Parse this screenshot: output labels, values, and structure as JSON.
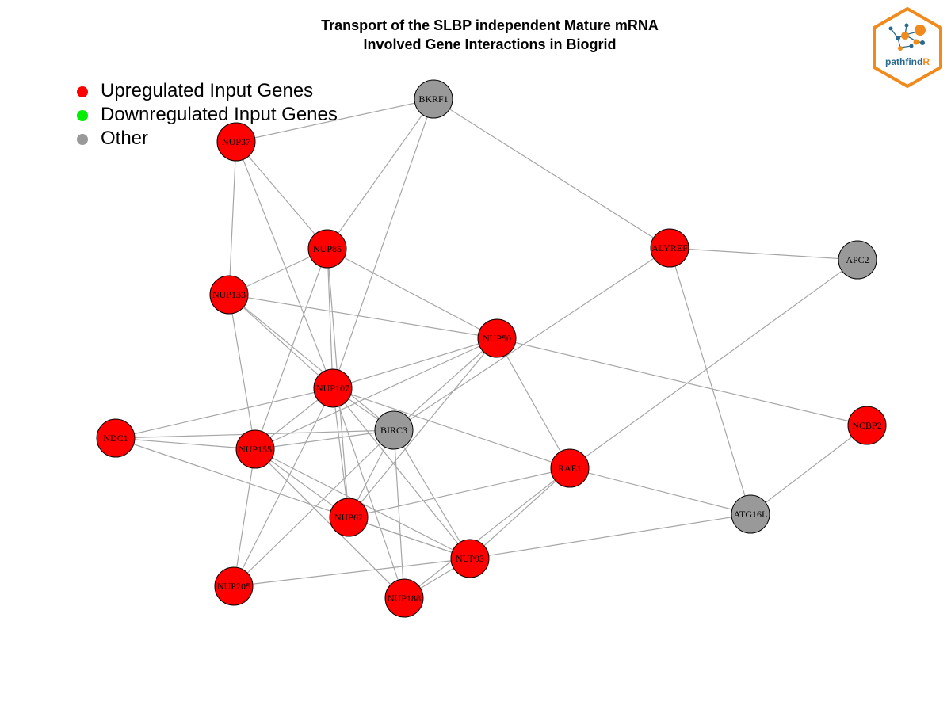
{
  "title_lines": [
    "Transport of the SLBP independent Mature mRNA",
    "Involved Gene Interactions in Biogrid"
  ],
  "legend": [
    {
      "label": "Upregulated Input Genes",
      "color": "#ff0000"
    },
    {
      "label": "Downregulated Input Genes",
      "color": "#00ee00"
    },
    {
      "label": "Other",
      "color": "#999999"
    }
  ],
  "colors": {
    "upregulated": "#ff0000",
    "other": "#999999",
    "edge": "#a6a6a6",
    "node_border": "#000000"
  },
  "logo": {
    "text_main": "pathfind",
    "text_accent": "R",
    "border_color": "#f08a1c",
    "icon": "network-logo-icon"
  },
  "network": {
    "nodes": [
      {
        "id": "BKRF1",
        "label": "BKRF1",
        "type": "other"
      },
      {
        "id": "NUP37",
        "label": "NUP37",
        "type": "upregulated"
      },
      {
        "id": "NUP85",
        "label": "NUP85",
        "type": "upregulated"
      },
      {
        "id": "ALYREF",
        "label": "ALYREF",
        "type": "upregulated"
      },
      {
        "id": "APC2",
        "label": "APC2",
        "type": "other"
      },
      {
        "id": "NUP133",
        "label": "NUP133",
        "type": "upregulated"
      },
      {
        "id": "NUP50",
        "label": "NUP50",
        "type": "upregulated"
      },
      {
        "id": "NUP107",
        "label": "NUP107",
        "type": "upregulated"
      },
      {
        "id": "BIRC3",
        "label": "BIRC3",
        "type": "other"
      },
      {
        "id": "NCBP2",
        "label": "NCBP2",
        "type": "upregulated"
      },
      {
        "id": "NDC1",
        "label": "NDC1",
        "type": "upregulated"
      },
      {
        "id": "NUP155",
        "label": "NUP155",
        "type": "upregulated"
      },
      {
        "id": "RAE1",
        "label": "RAE1",
        "type": "upregulated"
      },
      {
        "id": "ATG16L",
        "label": "ATG16L",
        "type": "other"
      },
      {
        "id": "NUP62",
        "label": "NUP62",
        "type": "upregulated"
      },
      {
        "id": "NUP93",
        "label": "NUP93",
        "type": "upregulated"
      },
      {
        "id": "NUP205",
        "label": "NUP205",
        "type": "upregulated"
      },
      {
        "id": "NUP188",
        "label": "NUP188",
        "type": "upregulated"
      }
    ],
    "edges": [
      [
        "BKRF1",
        "NUP37"
      ],
      [
        "BKRF1",
        "NUP85"
      ],
      [
        "BKRF1",
        "NUP107"
      ],
      [
        "BKRF1",
        "ALYREF"
      ],
      [
        "NUP37",
        "NUP85"
      ],
      [
        "NUP37",
        "NUP133"
      ],
      [
        "NUP37",
        "NUP107"
      ],
      [
        "NUP85",
        "NUP133"
      ],
      [
        "NUP85",
        "NUP50"
      ],
      [
        "NUP85",
        "NUP107"
      ],
      [
        "NUP85",
        "NUP155"
      ],
      [
        "NUP85",
        "NUP62"
      ],
      [
        "ALYREF",
        "APC2"
      ],
      [
        "ALYREF",
        "ATG16L"
      ],
      [
        "ALYREF",
        "BIRC3"
      ],
      [
        "APC2",
        "RAE1"
      ],
      [
        "NUP133",
        "NUP50"
      ],
      [
        "NUP133",
        "NUP107"
      ],
      [
        "NUP133",
        "NUP155"
      ],
      [
        "NUP133",
        "BIRC3"
      ],
      [
        "NUP50",
        "NUP107"
      ],
      [
        "NUP50",
        "NUP155"
      ],
      [
        "NUP50",
        "BIRC3"
      ],
      [
        "NUP50",
        "RAE1"
      ],
      [
        "NUP50",
        "NCBP2"
      ],
      [
        "NUP50",
        "NUP62"
      ],
      [
        "NUP107",
        "NDC1"
      ],
      [
        "NUP107",
        "NUP155"
      ],
      [
        "NUP107",
        "BIRC3"
      ],
      [
        "NUP107",
        "RAE1"
      ],
      [
        "NUP107",
        "NUP62"
      ],
      [
        "NUP107",
        "NUP93"
      ],
      [
        "NUP107",
        "NUP188"
      ],
      [
        "NUP107",
        "NUP205"
      ],
      [
        "NDC1",
        "NUP155"
      ],
      [
        "NDC1",
        "BIRC3"
      ],
      [
        "NDC1",
        "NUP93"
      ],
      [
        "NUP155",
        "BIRC3"
      ],
      [
        "NUP155",
        "NUP62"
      ],
      [
        "NUP155",
        "NUP93"
      ],
      [
        "NUP155",
        "NUP205"
      ],
      [
        "NUP155",
        "NUP188"
      ],
      [
        "BIRC3",
        "NUP93"
      ],
      [
        "BIRC3",
        "NUP188"
      ],
      [
        "BIRC3",
        "NUP62"
      ],
      [
        "BIRC3",
        "NUP205"
      ],
      [
        "RAE1",
        "NUP62"
      ],
      [
        "RAE1",
        "NUP93"
      ],
      [
        "RAE1",
        "NUP188"
      ],
      [
        "RAE1",
        "ATG16L"
      ],
      [
        "NCBP2",
        "ATG16L"
      ],
      [
        "ATG16L",
        "NUP93"
      ],
      [
        "NUP62",
        "NUP93"
      ],
      [
        "NUP93",
        "NUP205"
      ],
      [
        "NUP93",
        "NUP188"
      ]
    ]
  }
}
